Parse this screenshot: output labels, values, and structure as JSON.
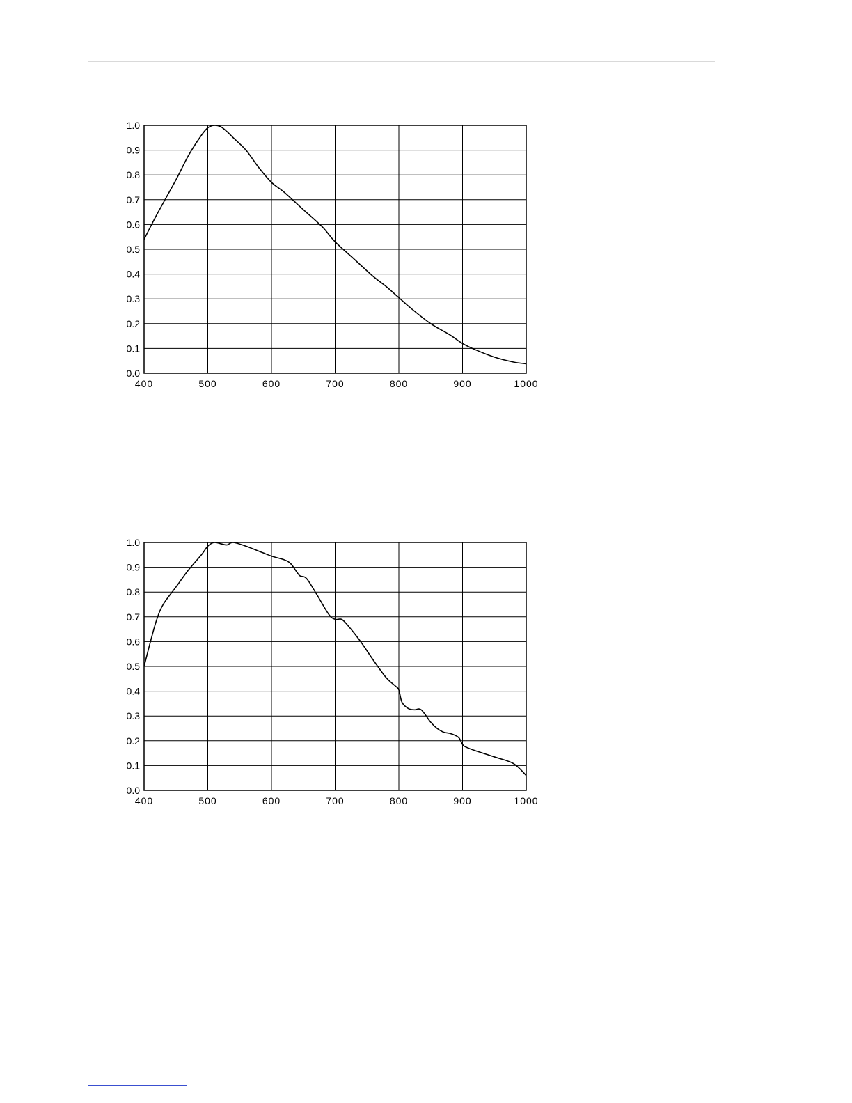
{
  "chart_data": [
    {
      "type": "line",
      "title": "",
      "xlabel": "",
      "ylabel": "",
      "xlim": [
        400,
        1000
      ],
      "ylim": [
        0.0,
        1.0
      ],
      "grid": true,
      "x_ticks": [
        "400",
        "500",
        "600",
        "700",
        "800",
        "900",
        "1000"
      ],
      "y_ticks": [
        "0.0",
        "0.1",
        "0.2",
        "0.3",
        "0.4",
        "0.5",
        "0.6",
        "0.7",
        "0.8",
        "0.9",
        "1.0"
      ],
      "series": [
        {
          "x": [
            400,
            420,
            450,
            470,
            490,
            500,
            510,
            520,
            530,
            540,
            560,
            580,
            600,
            620,
            650,
            680,
            700,
            730,
            760,
            780,
            800,
            820,
            850,
            880,
            900,
            920,
            950,
            980,
            1000
          ],
          "y": [
            0.54,
            0.64,
            0.78,
            0.88,
            0.96,
            0.99,
            1.0,
            0.995,
            0.975,
            0.95,
            0.9,
            0.83,
            0.77,
            0.73,
            0.66,
            0.59,
            0.53,
            0.46,
            0.39,
            0.35,
            0.305,
            0.26,
            0.2,
            0.155,
            0.12,
            0.095,
            0.065,
            0.045,
            0.038
          ]
        }
      ]
    },
    {
      "type": "line",
      "title": "",
      "xlabel": "",
      "ylabel": "",
      "xlim": [
        400,
        1000
      ],
      "ylim": [
        0.0,
        1.0
      ],
      "grid": true,
      "x_ticks": [
        "400",
        "500",
        "600",
        "700",
        "800",
        "900",
        "1000"
      ],
      "y_ticks": [
        "0.0",
        "0.1",
        "0.2",
        "0.3",
        "0.4",
        "0.5",
        "0.6",
        "0.7",
        "0.8",
        "0.9",
        "1.0"
      ],
      "series": [
        {
          "x": [
            400,
            410,
            420,
            430,
            450,
            470,
            490,
            500,
            510,
            520,
            530,
            540,
            560,
            580,
            600,
            620,
            630,
            640,
            645,
            655,
            670,
            690,
            700,
            710,
            720,
            740,
            760,
            780,
            795,
            800,
            805,
            815,
            825,
            835,
            850,
            860,
            870,
            880,
            890,
            895,
            900,
            905,
            920,
            950,
            980,
            1000
          ],
          "y": [
            0.5,
            0.6,
            0.69,
            0.75,
            0.82,
            0.89,
            0.95,
            0.985,
            1.0,
            0.995,
            0.99,
            1.0,
            0.985,
            0.965,
            0.945,
            0.93,
            0.915,
            0.88,
            0.865,
            0.855,
            0.795,
            0.71,
            0.69,
            0.69,
            0.665,
            0.6,
            0.525,
            0.455,
            0.42,
            0.405,
            0.355,
            0.33,
            0.325,
            0.325,
            0.275,
            0.25,
            0.235,
            0.23,
            0.22,
            0.21,
            0.185,
            0.175,
            0.16,
            0.135,
            0.108,
            0.06
          ]
        }
      ]
    }
  ]
}
